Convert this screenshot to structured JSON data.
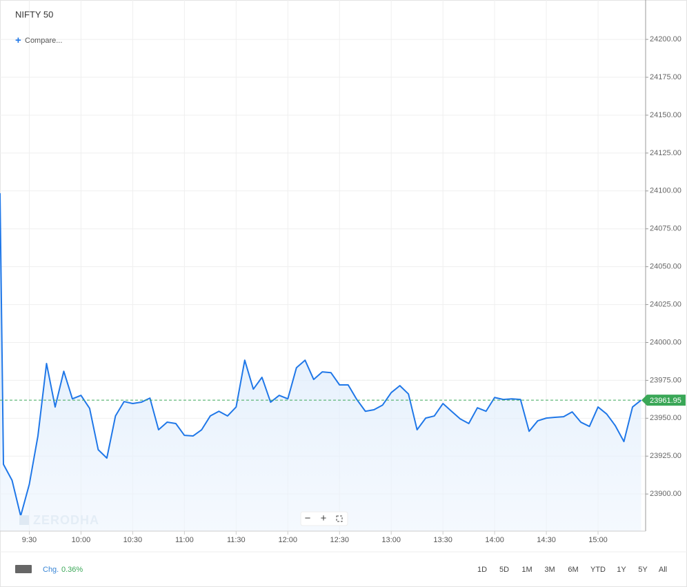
{
  "chart_data": {
    "type": "line",
    "title": "NIFTY 50",
    "color": "#1f77e8",
    "x": [
      553,
      555,
      560,
      565,
      570,
      575,
      580,
      585,
      590,
      595,
      600,
      605,
      610,
      615,
      620,
      625,
      630,
      635,
      640,
      645,
      650,
      655,
      660,
      665,
      670,
      675,
      680,
      685,
      690,
      695,
      700,
      705,
      710,
      715,
      720,
      725,
      730,
      735,
      740,
      745,
      750,
      755,
      760,
      765,
      770,
      775,
      780,
      785,
      790,
      795,
      800,
      805,
      810,
      815,
      820,
      825,
      830,
      835,
      840,
      845,
      850,
      855,
      860,
      865,
      870,
      875,
      880,
      885,
      890,
      895,
      900,
      905,
      910,
      915,
      920,
      925
    ],
    "values": [
      24098.5,
      23919.6,
      23909,
      23885.5,
      23906.4,
      23938.3,
      23986.1,
      23957.4,
      23981,
      23962.8,
      23965.1,
      23956.5,
      23929.2,
      23923.7,
      23951.5,
      23961,
      23959.7,
      23960.6,
      23963.3,
      23942.4,
      23947.4,
      23946.5,
      23938.7,
      23938.3,
      23942.4,
      23951.5,
      23954.6,
      23951.5,
      23957.4,
      23988.3,
      23969.2,
      23977,
      23960.6,
      23965.1,
      23962.8,
      23983.3,
      23988.3,
      23975.6,
      23980.6,
      23980.1,
      23972,
      23972,
      23962.4,
      23954.6,
      23955.6,
      23958.7,
      23966.9,
      23971.5,
      23966,
      23942.4,
      23950.1,
      23951.5,
      23959.7,
      23954.6,
      23949.6,
      23946.5,
      23956.9,
      23954.6,
      23963.7,
      23962.4,
      23962.8,
      23962.4,
      23941.4,
      23948.3,
      23950.1,
      23950.6,
      23951,
      23954.2,
      23947.4,
      23944.6,
      23957.4,
      23952.8,
      23945.1,
      23934.6,
      23957.4,
      23961.95
    ],
    "last_price": 23961.95,
    "xlim": [
      553,
      927.6
    ],
    "ylim": [
      23875.5,
      24226
    ],
    "xticks": [
      {
        "value": 570,
        "label": "9:30"
      },
      {
        "value": 600,
        "label": "10:00"
      },
      {
        "value": 630,
        "label": "10:30"
      },
      {
        "value": 660,
        "label": "11:00"
      },
      {
        "value": 690,
        "label": "11:30"
      },
      {
        "value": 720,
        "label": "12:00"
      },
      {
        "value": 750,
        "label": "12:30"
      },
      {
        "value": 780,
        "label": "13:00"
      },
      {
        "value": 810,
        "label": "13:30"
      },
      {
        "value": 840,
        "label": "14:00"
      },
      {
        "value": 870,
        "label": "14:30"
      },
      {
        "value": 900,
        "label": "15:00"
      }
    ],
    "yticks": [
      {
        "value": 23900,
        "label": "23900.00"
      },
      {
        "value": 23925,
        "label": "23925.00"
      },
      {
        "value": 23950,
        "label": "23950.00"
      },
      {
        "value": 23975,
        "label": "23975.00"
      },
      {
        "value": 24000,
        "label": "24000.00"
      },
      {
        "value": 24025,
        "label": "24025.00"
      },
      {
        "value": 24050,
        "label": "24050.00"
      },
      {
        "value": 24075,
        "label": "24075.00"
      },
      {
        "value": 24100,
        "label": "24100.00"
      },
      {
        "value": 24125,
        "label": "24125.00"
      },
      {
        "value": 24150,
        "label": "24150.00"
      },
      {
        "value": 24175,
        "label": "24175.00"
      },
      {
        "value": 24200,
        "label": "24200.00"
      }
    ],
    "grid": true
  },
  "ui": {
    "compare": "Compare...",
    "watermark": "ZERODHA",
    "change_label": "Chg.",
    "change_value": "0.36%",
    "ranges": [
      "1D",
      "5D",
      "1M",
      "3M",
      "6M",
      "YTD",
      "1Y",
      "5Y",
      "All"
    ]
  }
}
